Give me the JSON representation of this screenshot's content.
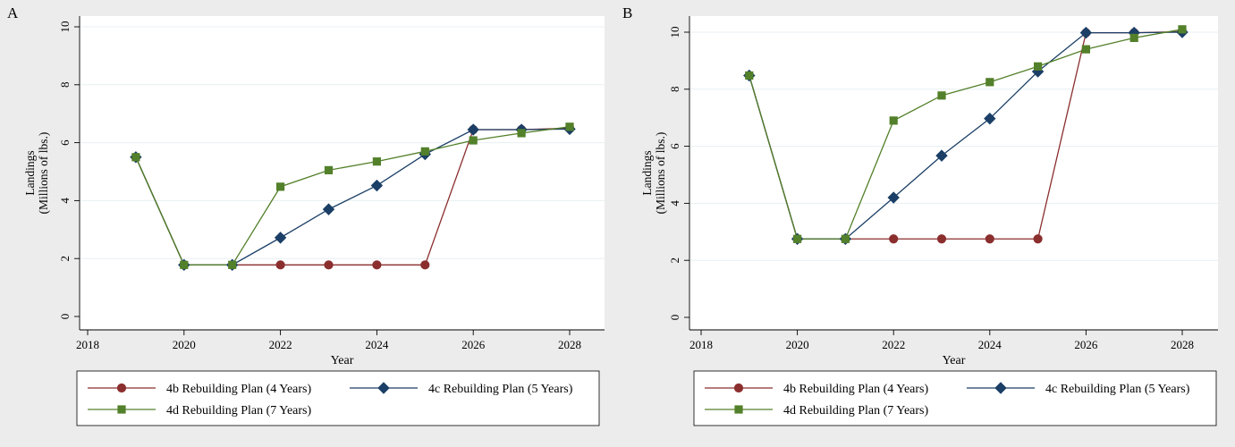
{
  "colors": {
    "figure_bg": "#ececec",
    "plot_bg": "#ffffff",
    "grid": "#e8eff3",
    "series_4b": "#8b2e2e",
    "series_4c": "#1b3f66",
    "series_4d": "#53802a"
  },
  "chart_data": [
    {
      "panel_label": "A",
      "type": "line",
      "xlabel": "Year",
      "ylabel_line1": "Landings",
      "ylabel_line2": "(Millions of lbs.)",
      "xlim": [
        2018,
        2028
      ],
      "ylim": [
        0,
        10
      ],
      "xticks": [
        2018,
        2020,
        2022,
        2024,
        2026,
        2028
      ],
      "yticks": [
        0,
        2,
        4,
        6,
        8,
        10
      ],
      "grid": "horizontal",
      "legend_position": "bottom",
      "x": [
        2019,
        2020,
        2021,
        2022,
        2023,
        2024,
        2025,
        2026,
        2027,
        2028
      ],
      "series": [
        {
          "name": "4b Rebuilding Plan (4 Years)",
          "marker": "circle",
          "color": "#8b2e2e",
          "values": [
            5.5,
            1.78,
            1.78,
            1.78,
            1.78,
            1.78,
            1.78,
            6.45,
            6.45,
            6.5
          ]
        },
        {
          "name": "4c Rebuilding Plan (5 Years)",
          "marker": "diamond",
          "color": "#1b3f66",
          "values": [
            5.5,
            1.78,
            1.78,
            2.72,
            3.7,
            4.52,
            5.6,
            6.45,
            6.45,
            6.47
          ]
        },
        {
          "name": "4d Rebuilding Plan (7 Years)",
          "marker": "square",
          "color": "#53802a",
          "values": [
            5.5,
            1.78,
            1.78,
            4.48,
            5.05,
            5.35,
            5.7,
            6.08,
            6.33,
            6.55
          ]
        }
      ]
    },
    {
      "panel_label": "B",
      "type": "line",
      "xlabel": "Year",
      "ylabel_line1": "Landings",
      "ylabel_line2": "(Millions of lbs.)",
      "xlim": [
        2018,
        2028
      ],
      "ylim": [
        0,
        10
      ],
      "xticks": [
        2018,
        2020,
        2022,
        2024,
        2026,
        2028
      ],
      "yticks": [
        0,
        2,
        4,
        6,
        8,
        10
      ],
      "grid": "horizontal",
      "legend_position": "bottom",
      "x": [
        2019,
        2020,
        2021,
        2022,
        2023,
        2024,
        2025,
        2026,
        2027,
        2028
      ],
      "series": [
        {
          "name": "4b Rebuilding Plan (4 Years)",
          "marker": "circle",
          "color": "#8b2e2e",
          "values": [
            8.48,
            2.75,
            2.75,
            2.75,
            2.75,
            2.75,
            2.75,
            9.98,
            9.98,
            10.02
          ]
        },
        {
          "name": "4c Rebuilding Plan (5 Years)",
          "marker": "diamond",
          "color": "#1b3f66",
          "values": [
            8.48,
            2.75,
            2.75,
            4.2,
            5.67,
            6.97,
            8.62,
            9.98,
            9.98,
            10.0
          ]
        },
        {
          "name": "4d Rebuilding Plan (7 Years)",
          "marker": "square",
          "color": "#53802a",
          "values": [
            8.48,
            2.75,
            2.75,
            6.9,
            7.78,
            8.25,
            8.8,
            9.4,
            9.8,
            10.1
          ]
        }
      ]
    }
  ]
}
